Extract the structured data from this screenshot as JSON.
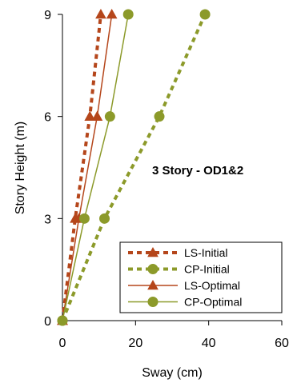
{
  "chart_data": {
    "type": "line",
    "title": "",
    "annotation": "3 Story - OD1&2",
    "xlabel": "Sway (cm)",
    "ylabel": "Story Height (m)",
    "xlim": [
      0,
      60
    ],
    "ylim": [
      0,
      9
    ],
    "x_ticks": [
      0,
      20,
      40,
      60
    ],
    "y_ticks": [
      0,
      3,
      6,
      9
    ],
    "grid": false,
    "legend_position": "bottom-right",
    "series": [
      {
        "name": "LS-Initial",
        "color": "#b5461b",
        "line": "dashed",
        "marker": "triangle",
        "points": [
          [
            0,
            0
          ],
          [
            3.5,
            3
          ],
          [
            7.5,
            6
          ],
          [
            10.5,
            9
          ]
        ]
      },
      {
        "name": "CP-Initial",
        "color": "#8c9a2a",
        "line": "dashed",
        "marker": "circle",
        "points": [
          [
            0,
            0
          ],
          [
            11.5,
            3
          ],
          [
            26.5,
            6
          ],
          [
            39,
            9
          ]
        ]
      },
      {
        "name": "LS-Optimal",
        "color": "#b5461b",
        "line": "solid",
        "marker": "triangle",
        "points": [
          [
            0,
            0
          ],
          [
            4.5,
            3
          ],
          [
            9.5,
            6
          ],
          [
            13.5,
            9
          ]
        ]
      },
      {
        "name": "CP-Optimal",
        "color": "#8c9a2a",
        "line": "solid",
        "marker": "circle",
        "points": [
          [
            0,
            0
          ],
          [
            6,
            3
          ],
          [
            13,
            6
          ],
          [
            18,
            9
          ]
        ]
      }
    ]
  }
}
